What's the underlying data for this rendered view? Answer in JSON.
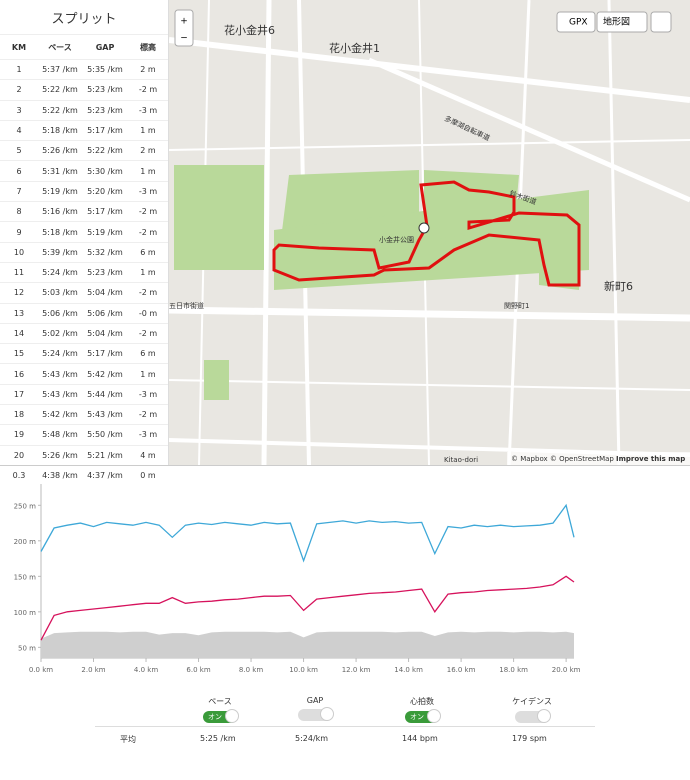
{
  "splits": {
    "title": "スプリット",
    "columns": [
      "KM",
      "ペース",
      "GAP",
      "標高"
    ],
    "rows": [
      [
        "1",
        "5:37 /km",
        "5:35 /km",
        "2 m"
      ],
      [
        "2",
        "5:22 /km",
        "5:23 /km",
        "-2 m"
      ],
      [
        "3",
        "5:22 /km",
        "5:23 /km",
        "-3 m"
      ],
      [
        "4",
        "5:18 /km",
        "5:17 /km",
        "1 m"
      ],
      [
        "5",
        "5:26 /km",
        "5:22 /km",
        "2 m"
      ],
      [
        "6",
        "5:31 /km",
        "5:30 /km",
        "1 m"
      ],
      [
        "7",
        "5:19 /km",
        "5:20 /km",
        "-3 m"
      ],
      [
        "8",
        "5:16 /km",
        "5:17 /km",
        "-2 m"
      ],
      [
        "9",
        "5:18 /km",
        "5:19 /km",
        "-2 m"
      ],
      [
        "10",
        "5:39 /km",
        "5:32 /km",
        "6 m"
      ],
      [
        "11",
        "5:24 /km",
        "5:23 /km",
        "1 m"
      ],
      [
        "12",
        "5:03 /km",
        "5:04 /km",
        "-2 m"
      ],
      [
        "13",
        "5:06 /km",
        "5:06 /km",
        "-0 m"
      ],
      [
        "14",
        "5:02 /km",
        "5:04 /km",
        "-2 m"
      ],
      [
        "15",
        "5:24 /km",
        "5:17 /km",
        "6 m"
      ],
      [
        "16",
        "5:43 /km",
        "5:42 /km",
        "1 m"
      ],
      [
        "17",
        "5:43 /km",
        "5:44 /km",
        "-3 m"
      ],
      [
        "18",
        "5:42 /km",
        "5:43 /km",
        "-2 m"
      ],
      [
        "19",
        "5:48 /km",
        "5:50 /km",
        "-3 m"
      ],
      [
        "20",
        "5:26 /km",
        "5:21 /km",
        "4 m"
      ],
      [
        "0.3",
        "4:38 /km",
        "4:37 /km",
        "0 m"
      ]
    ]
  },
  "map": {
    "buttons": {
      "zoom_in": "+",
      "zoom_out": "−",
      "gpx": "GPX",
      "layer": "地形図"
    },
    "labels": [
      "花小金井6",
      "花小金井1",
      "新町6",
      "小金井公園",
      "五日市街道",
      "鈴木街道",
      "多摩湖自転車道",
      "関野町1",
      "Kitao-dori"
    ],
    "attribution": "© Mapbox © OpenStreetMap",
    "improve": "Improve this map"
  },
  "profile": {
    "x": [
      0,
      0.5,
      1,
      1.5,
      2,
      2.5,
      3,
      3.5,
      4,
      4.5,
      5,
      5.5,
      6,
      6.5,
      7,
      7.5,
      8,
      8.5,
      9,
      9.5,
      10,
      10.5,
      11,
      11.5,
      12,
      12.5,
      13,
      13.5,
      14,
      14.5,
      15,
      15.5,
      16,
      16.5,
      17,
      17.5,
      18,
      18.5,
      19,
      19.5,
      20,
      20.3
    ],
    "series": [
      {
        "name": "ペース",
        "color": "#3ea8d8",
        "values": [
          185,
          218,
          222,
          225,
          220,
          226,
          224,
          222,
          226,
          222,
          205,
          222,
          225,
          223,
          226,
          224,
          222,
          226,
          224,
          225,
          172,
          224,
          226,
          228,
          225,
          228,
          226,
          227,
          225,
          226,
          182,
          220,
          218,
          222,
          220,
          222,
          220,
          221,
          222,
          225,
          250,
          205
        ]
      },
      {
        "name": "心拍数",
        "color": "#d6125c",
        "values": [
          60,
          95,
          100,
          102,
          104,
          106,
          108,
          110,
          112,
          112,
          120,
          112,
          114,
          115,
          117,
          118,
          120,
          122,
          122,
          123,
          102,
          118,
          120,
          122,
          124,
          126,
          127,
          128,
          130,
          132,
          100,
          125,
          127,
          128,
          130,
          131,
          132,
          133,
          135,
          138,
          150,
          142
        ]
      },
      {
        "name": "標高",
        "color": "#cfcfcf",
        "values": [
          62,
          70,
          71,
          72,
          72,
          72,
          71,
          72,
          72,
          68,
          70,
          70,
          67,
          71,
          72,
          72,
          72,
          72,
          71,
          72,
          64,
          71,
          72,
          72,
          72,
          72,
          72,
          71,
          72,
          72,
          66,
          71,
          72,
          71,
          72,
          72,
          71,
          72,
          72,
          71,
          72,
          70
        ]
      }
    ],
    "xlim": [
      0,
      20.3
    ],
    "ylim": [
      35,
      280
    ],
    "xticks": [
      {
        "value": 0,
        "label": "0.0 km"
      },
      {
        "value": 2,
        "label": "2.0 km"
      },
      {
        "value": 4,
        "label": "4.0 km"
      },
      {
        "value": 6,
        "label": "6.0 km"
      },
      {
        "value": 8,
        "label": "8.0 km"
      },
      {
        "value": 10,
        "label": "10.0 km"
      },
      {
        "value": 12,
        "label": "12.0 km"
      },
      {
        "value": 14,
        "label": "14.0 km"
      },
      {
        "value": 16,
        "label": "16.0 km"
      },
      {
        "value": 18,
        "label": "18.0 km"
      },
      {
        "value": 20,
        "label": "20.0 km"
      }
    ],
    "yticks": [
      {
        "value": 50,
        "label": "50 m"
      },
      {
        "value": 100,
        "label": "100 m"
      },
      {
        "value": 150,
        "label": "150 m"
      },
      {
        "value": 200,
        "label": "200 m"
      },
      {
        "value": 250,
        "label": "250 m"
      }
    ]
  },
  "toggles": [
    {
      "label": "ペース",
      "state": "オン"
    },
    {
      "label": "GAP"
    },
    {
      "label": "心拍数",
      "state": "オン"
    },
    {
      "label": "ケイデンス"
    }
  ],
  "averages": {
    "label": "平均",
    "values": [
      "5:25 /km",
      "5:24/km",
      "144 bpm",
      "179 spm"
    ]
  }
}
